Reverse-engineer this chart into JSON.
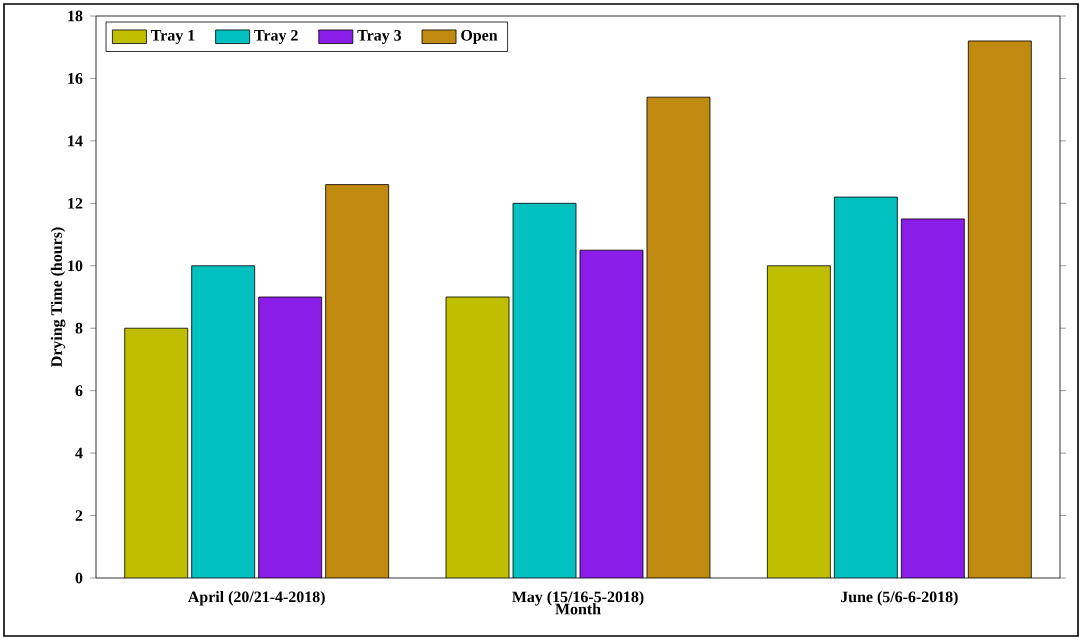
{
  "chart_data": {
    "type": "bar",
    "xlabel": "Month",
    "ylabel": "Drying Time (hours)",
    "categories": [
      "April (20/21-4-2018)",
      "May (15/16-5-2018)",
      "June (5/6-6-2018)"
    ],
    "series": [
      {
        "name": "Tray 1",
        "color": "#bfbf00",
        "values": [
          8,
          9,
          10
        ]
      },
      {
        "name": "Tray 2",
        "color": "#00c0c0",
        "values": [
          10,
          12,
          12.2
        ]
      },
      {
        "name": "Tray 3",
        "color": "#8a1de8",
        "values": [
          9,
          10.5,
          11.5
        ]
      },
      {
        "name": "Open",
        "color": "#bf8a0f",
        "values": [
          12.6,
          15.4,
          17.2
        ]
      }
    ],
    "ylim": [
      0,
      18
    ],
    "yticks": [
      0,
      2,
      4,
      6,
      8,
      10,
      12,
      14,
      16,
      18
    ],
    "grid": false,
    "legend": "top left"
  }
}
